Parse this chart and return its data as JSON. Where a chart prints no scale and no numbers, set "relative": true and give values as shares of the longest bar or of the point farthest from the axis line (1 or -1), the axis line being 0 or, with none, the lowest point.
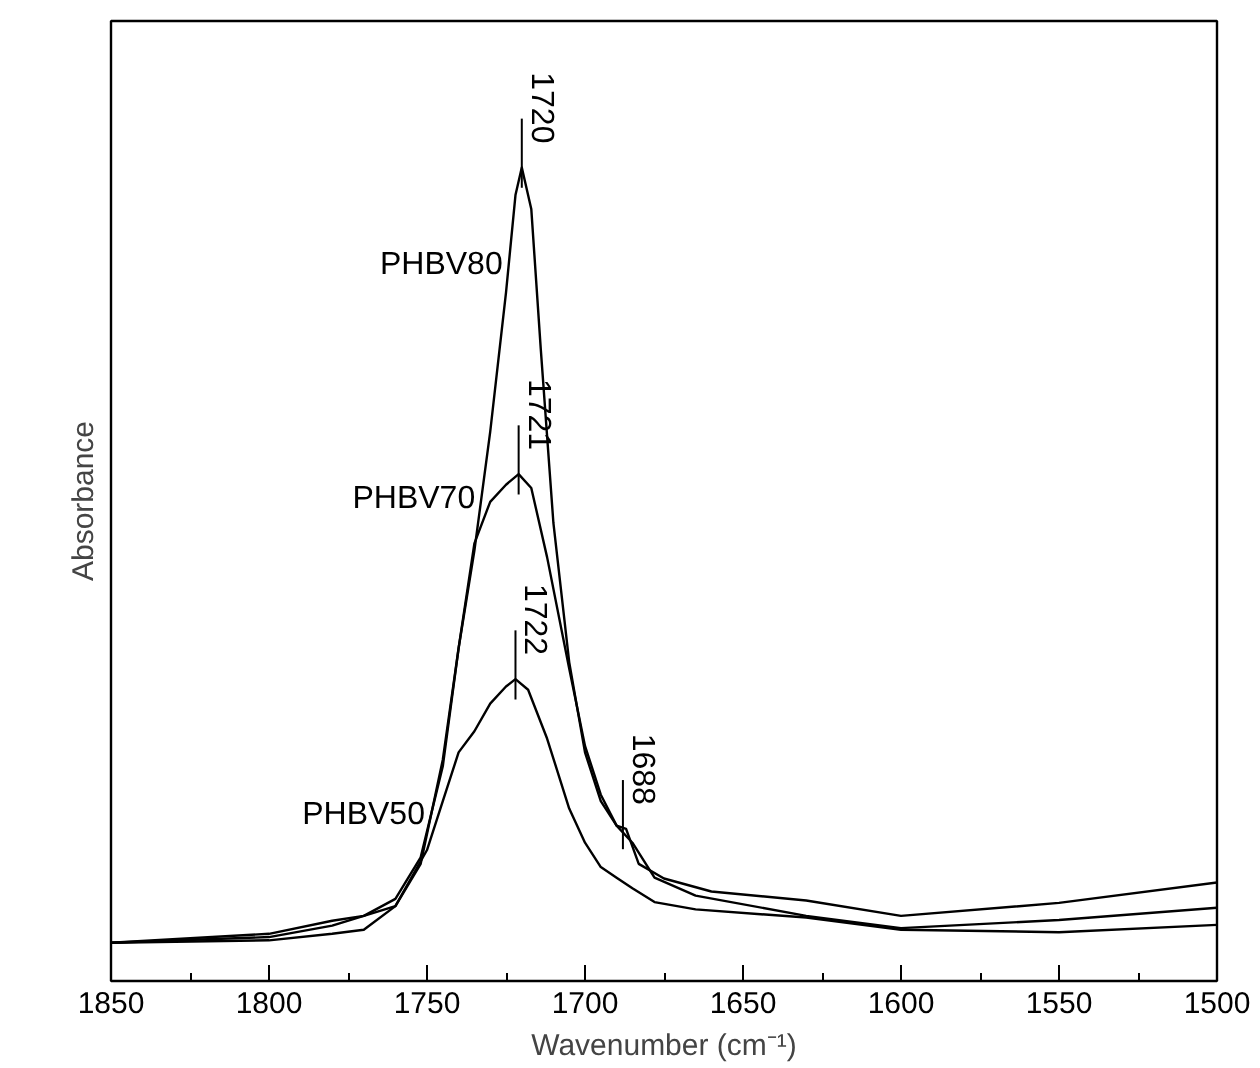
{
  "chart_data": {
    "type": "line",
    "relative": true,
    "xlabel": "Wavenumber (cm⁻¹)",
    "ylabel": "Absorbance",
    "xlim": [
      1850,
      1500
    ],
    "xticks": [
      1850,
      1800,
      1750,
      1700,
      1650,
      1600,
      1550,
      1500
    ],
    "grid": false,
    "marker": "none",
    "line_style": "solid",
    "series": [
      {
        "name": "PHBV80",
        "color": "#000000",
        "x": [
          1850,
          1800,
          1780,
          1770,
          1760,
          1752,
          1745,
          1740,
          1735,
          1730,
          1725,
          1722,
          1720,
          1717,
          1714,
          1710,
          1705,
          1700,
          1695,
          1690,
          1687,
          1683,
          1675,
          1660,
          1630,
          1600,
          1550,
          1500
        ],
        "values": [
          0.047,
          0.058,
          0.074,
          0.08,
          0.101,
          0.152,
          0.264,
          0.409,
          0.529,
          0.675,
          0.846,
          0.966,
          1.0,
          0.949,
          0.777,
          0.563,
          0.392,
          0.281,
          0.221,
          0.191,
          0.187,
          0.144,
          0.126,
          0.11,
          0.099,
          0.08,
          0.096,
          0.121
        ]
      },
      {
        "name": "PHBV70",
        "color": "#000000",
        "x": [
          1850,
          1800,
          1780,
          1760,
          1752,
          1745,
          1740,
          1735,
          1730,
          1725,
          1721,
          1717,
          1712,
          1705,
          1700,
          1695,
          1690,
          1685,
          1678,
          1665,
          1630,
          1600,
          1550,
          1500
        ],
        "values": [
          0.047,
          0.054,
          0.068,
          0.092,
          0.144,
          0.272,
          0.409,
          0.538,
          0.589,
          0.61,
          0.623,
          0.606,
          0.521,
          0.384,
          0.289,
          0.229,
          0.191,
          0.17,
          0.127,
          0.105,
          0.08,
          0.065,
          0.075,
          0.09
        ]
      },
      {
        "name": "PHBV50",
        "color": "#000000",
        "x": [
          1850,
          1800,
          1780,
          1770,
          1760,
          1750,
          1745,
          1740,
          1735,
          1730,
          1725,
          1722,
          1718,
          1712,
          1705,
          1700,
          1695,
          1690,
          1685,
          1678,
          1665,
          1630,
          1600,
          1550,
          1500
        ],
        "values": [
          0.047,
          0.05,
          0.058,
          0.063,
          0.092,
          0.161,
          0.221,
          0.281,
          0.307,
          0.341,
          0.362,
          0.371,
          0.358,
          0.298,
          0.212,
          0.17,
          0.14,
          0.127,
          0.114,
          0.097,
          0.088,
          0.078,
          0.063,
          0.06,
          0.069
        ]
      }
    ],
    "annotations": [
      {
        "text": "1720",
        "x": 1720,
        "y": 1.0
      },
      {
        "text": "1721",
        "x": 1721,
        "y": 0.623
      },
      {
        "text": "1722",
        "x": 1722,
        "y": 0.371
      },
      {
        "text": "1688",
        "x": 1688,
        "y": 0.187
      }
    ]
  }
}
